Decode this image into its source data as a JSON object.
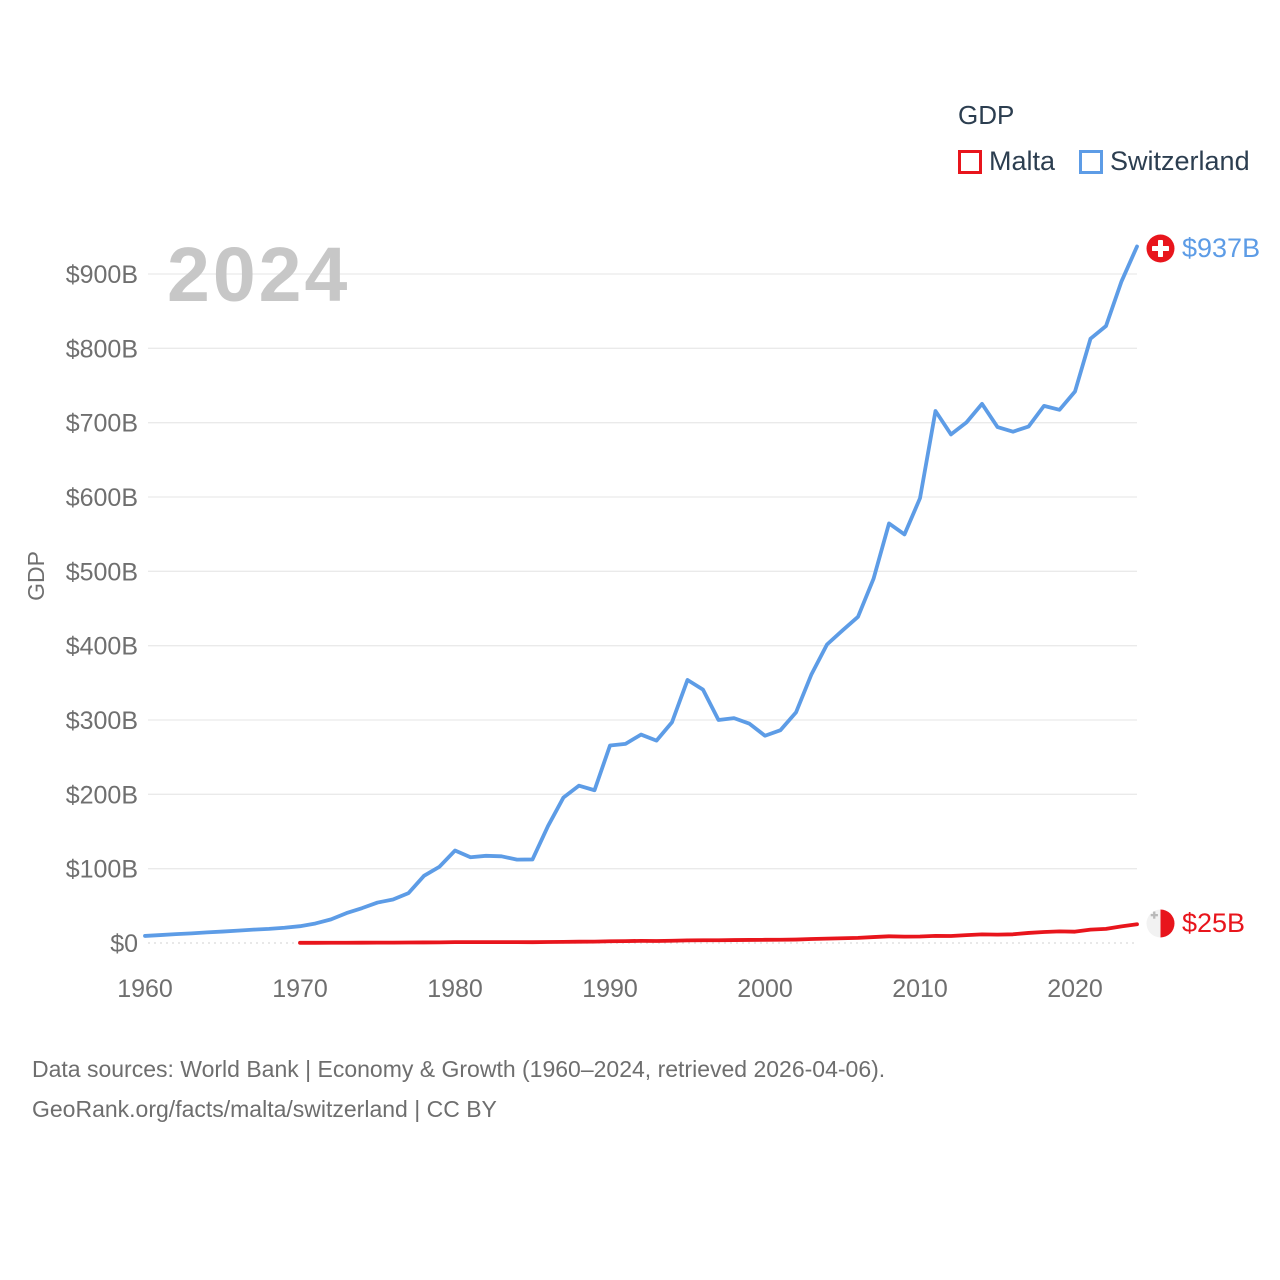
{
  "page": {
    "background": "#ffffff"
  },
  "watermark": "2024",
  "legend": {
    "title": "GDP"
  },
  "footer": {
    "line1": "Data sources: World Bank | Economy & Growth (1960–2024, retrieved 2026-04-06).",
    "line2": "GeoRank.org/facts/malta/switzerland | CC BY"
  },
  "chart_data": {
    "type": "line",
    "title": "GDP",
    "xlabel": "",
    "ylabel": "GDP",
    "watermark": "2024",
    "grid": true,
    "legend": {
      "title": "GDP",
      "position": "top-right"
    },
    "xlim": [
      1960,
      2024
    ],
    "ylim": [
      0,
      950
    ],
    "x_ticks": [
      1960,
      1970,
      1980,
      1990,
      2000,
      2010,
      2020
    ],
    "y_ticks": [
      0,
      100,
      200,
      300,
      400,
      500,
      600,
      700,
      800,
      900
    ],
    "y_tick_labels": [
      "$0",
      "$100B",
      "$200B",
      "$300B",
      "$400B",
      "$500B",
      "$600B",
      "$700B",
      "$800B",
      "$900B"
    ],
    "axis_text_color": "#6f6f6f",
    "grid_color": "#eaeaea",
    "zero_line_color": "#d9d9d9",
    "series": [
      {
        "name": "Malta",
        "color": "#e8151c",
        "start_year": 1970,
        "end_label": "$25B",
        "values": [
          0.24,
          0.27,
          0.31,
          0.35,
          0.4,
          0.47,
          0.55,
          0.63,
          0.73,
          0.88,
          1.13,
          1.18,
          1.22,
          1.19,
          1.14,
          1.12,
          1.33,
          1.56,
          1.74,
          1.87,
          2.31,
          2.52,
          2.85,
          2.72,
          3.01,
          3.57,
          3.72,
          3.75,
          3.96,
          4.09,
          4.26,
          4.34,
          4.62,
          5.33,
          5.87,
          6.39,
          6.85,
          7.97,
          8.98,
          8.53,
          8.74,
          9.55,
          9.44,
          10.58,
          11.65,
          11.26,
          11.72,
          13.52,
          14.83,
          15.67,
          15.25,
          18.04,
          18.95,
          22.41,
          25.17
        ]
      },
      {
        "name": "Switzerland",
        "color": "#5d9ce6",
        "start_year": 1960,
        "end_label": "$937B",
        "values": [
          9.5,
          10.7,
          11.9,
          12.9,
          14.3,
          15.4,
          16.6,
          18.0,
          19.0,
          20.5,
          22.6,
          26.3,
          31.8,
          40.2,
          46.9,
          54.4,
          58.5,
          67.1,
          90.4,
          102.6,
          124.4,
          115.4,
          117.3,
          116.6,
          112.2,
          112.4,
          157.3,
          195.8,
          211.7,
          205.5,
          265.7,
          267.9,
          280.4,
          272.3,
          297.0,
          353.9,
          340.9,
          300.0,
          302.5,
          295.0,
          278.8,
          286.3,
          310.2,
          361.6,
          401.6,
          420.5,
          438.8,
          489.9,
          564.4,
          549.7,
          598.4,
          715.7,
          684.2,
          700.4,
          725.3,
          694.1,
          687.9,
          694.7,
          722.6,
          717.3,
          741.9,
          813.0,
          830.0,
          890.0,
          937.0
        ]
      }
    ]
  }
}
